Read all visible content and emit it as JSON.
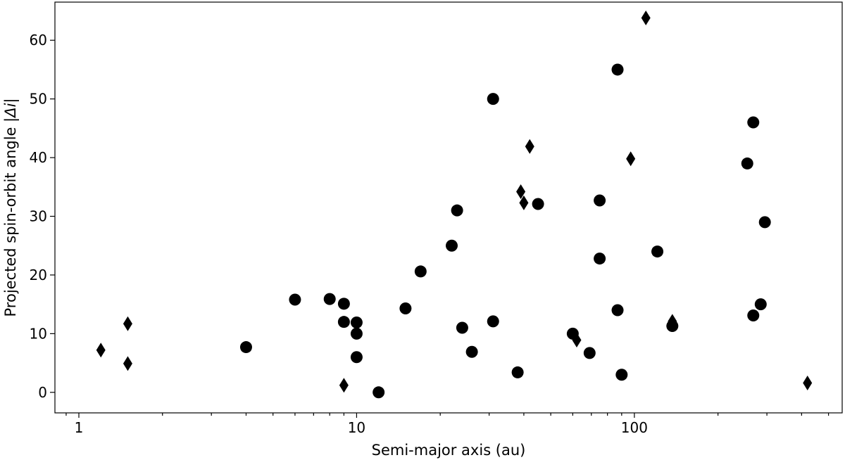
{
  "chart_data": {
    "type": "scatter",
    "title": "",
    "xlabel": "Semi-major axis (au)",
    "ylabel_prefix": "Projected spin-orbit angle |",
    "ylabel_math": "Δi",
    "ylabel_suffix": "|",
    "xscale": "log",
    "xlim": [
      0.82,
      560
    ],
    "ylim": [
      -3.5,
      66.5
    ],
    "x_ticks": [
      1,
      10,
      100
    ],
    "x_tick_labels": [
      "1",
      "10",
      "100"
    ],
    "y_ticks": [
      0,
      10,
      20,
      30,
      40,
      50,
      60
    ],
    "y_tick_labels": [
      "0",
      "10",
      "20",
      "30",
      "40",
      "50",
      "60"
    ],
    "grid": false,
    "series": [
      {
        "marker": "circle",
        "color": "#000000",
        "points": [
          [
            4,
            7.7
          ],
          [
            6,
            15.8
          ],
          [
            8,
            15.9
          ],
          [
            9,
            15.1
          ],
          [
            9,
            12
          ],
          [
            10,
            11.9
          ],
          [
            10,
            10
          ],
          [
            10,
            6
          ],
          [
            12,
            0
          ],
          [
            15,
            14.3
          ],
          [
            17,
            20.6
          ],
          [
            22,
            25
          ],
          [
            23,
            31
          ],
          [
            24,
            11
          ],
          [
            26,
            6.9
          ],
          [
            31,
            50
          ],
          [
            31,
            12.1
          ],
          [
            38,
            3.4
          ],
          [
            45,
            32.1
          ],
          [
            60,
            10
          ],
          [
            69,
            6.7
          ],
          [
            75,
            32.7
          ],
          [
            75,
            22.8
          ],
          [
            87,
            55
          ],
          [
            87,
            14
          ],
          [
            90,
            3
          ],
          [
            121,
            24
          ],
          [
            137,
            11.3
          ],
          [
            255,
            39
          ],
          [
            268,
            46
          ],
          [
            268,
            13.1
          ],
          [
            285,
            15
          ],
          [
            295,
            29
          ]
        ]
      },
      {
        "marker": "diamond",
        "color": "#000000",
        "points": [
          [
            1.2,
            7.2
          ],
          [
            1.5,
            11.7
          ],
          [
            1.5,
            4.9
          ],
          [
            9,
            1.2
          ],
          [
            39,
            34.2
          ],
          [
            40,
            32.3
          ],
          [
            42,
            41.9
          ],
          [
            62,
            8.9
          ],
          [
            97,
            39.8
          ],
          [
            110,
            63.8
          ],
          [
            137,
            12.1
          ],
          [
            420,
            1.6
          ]
        ]
      }
    ]
  }
}
